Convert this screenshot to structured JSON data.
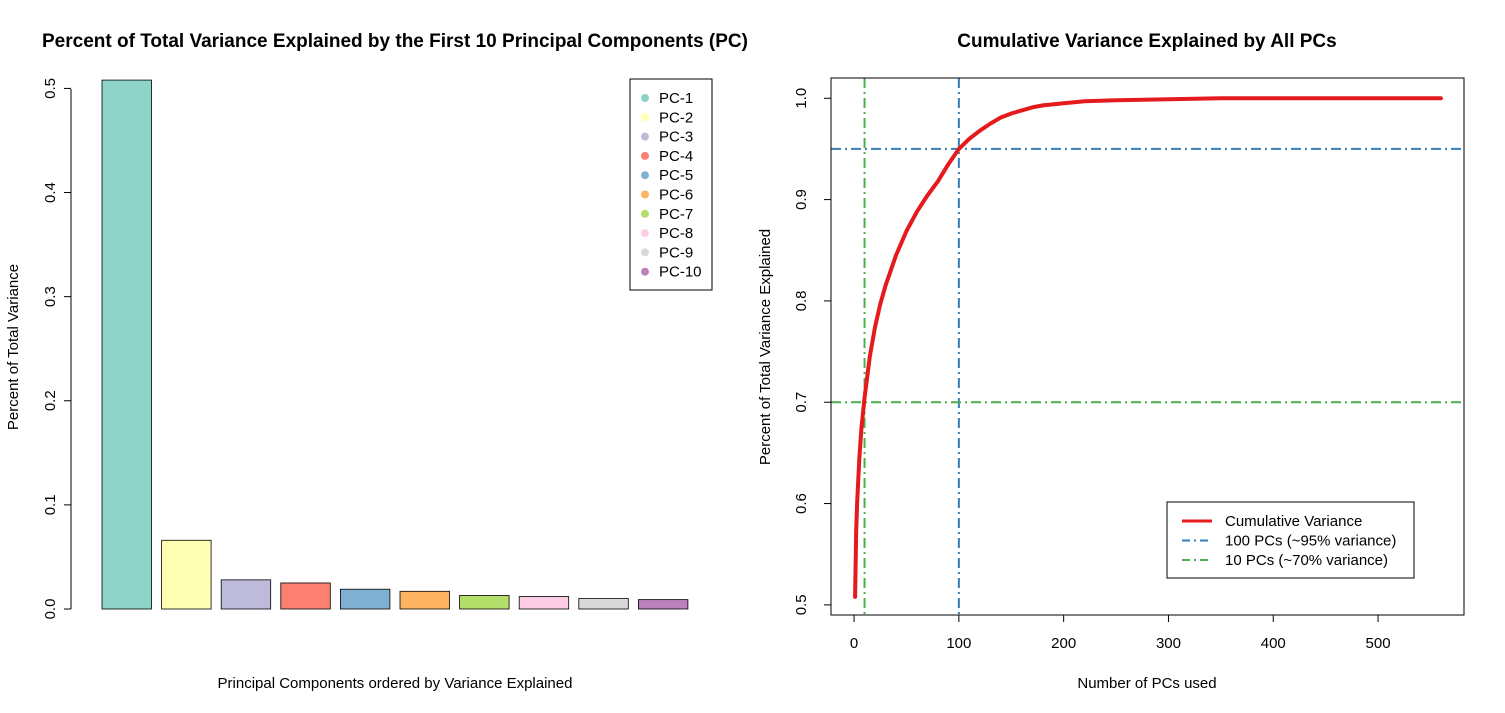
{
  "chart_data": [
    {
      "type": "bar",
      "title": "Percent of Total Variance Explained by the First 10 Principal Components (PC)",
      "xlabel": "Principal Components ordered by Variance Explained",
      "ylabel": "Percent of Total Variance",
      "ylim": [
        0,
        0.51
      ],
      "yticks": [
        0.0,
        0.1,
        0.2,
        0.3,
        0.4,
        0.5
      ],
      "ytick_labels": [
        "0.0",
        "0.1",
        "0.2",
        "0.3",
        "0.4",
        "0.5"
      ],
      "categories": [
        "PC-1",
        "PC-2",
        "PC-3",
        "PC-4",
        "PC-5",
        "PC-6",
        "PC-7",
        "PC-8",
        "PC-9",
        "PC-10"
      ],
      "values": [
        0.508,
        0.066,
        0.028,
        0.025,
        0.019,
        0.017,
        0.013,
        0.012,
        0.01,
        0.009
      ],
      "colors": [
        "#8dd3c7",
        "#ffffb3",
        "#bebada",
        "#fb8072",
        "#80b1d3",
        "#fdb462",
        "#b3de69",
        "#fccde5",
        "#d9d9d9",
        "#bc80bd"
      ],
      "legend": {
        "position": "top-right",
        "labels": [
          "PC-1",
          "PC-2",
          "PC-3",
          "PC-4",
          "PC-5",
          "PC-6",
          "PC-7",
          "PC-8",
          "PC-9",
          "PC-10"
        ]
      }
    },
    {
      "type": "line",
      "title": "Cumulative Variance Explained by All PCs",
      "xlabel": "Number of PCs used",
      "ylabel": "Percent of Total Variance Explained",
      "xlim": [
        -22,
        582
      ],
      "ylim": [
        0.49,
        1.02
      ],
      "xticks": [
        0,
        100,
        200,
        300,
        400,
        500
      ],
      "xtick_labels": [
        "0",
        "100",
        "200",
        "300",
        "400",
        "500"
      ],
      "yticks": [
        0.5,
        0.6,
        0.7,
        0.8,
        0.9,
        1.0
      ],
      "ytick_labels": [
        "0.5",
        "0.6",
        "0.7",
        "0.8",
        "0.9",
        "1.0"
      ],
      "series": [
        {
          "name": "Cumulative Variance",
          "color": "#e41a1c",
          "x": [
            1,
            2,
            3,
            5,
            7,
            10,
            15,
            20,
            25,
            30,
            40,
            50,
            60,
            70,
            80,
            90,
            100,
            110,
            120,
            130,
            140,
            150,
            160,
            170,
            180,
            200,
            220,
            250,
            300,
            350,
            400,
            450,
            500,
            560
          ],
          "y": [
            0.508,
            0.574,
            0.602,
            0.644,
            0.674,
            0.704,
            0.745,
            0.774,
            0.797,
            0.815,
            0.845,
            0.869,
            0.888,
            0.904,
            0.918,
            0.935,
            0.95,
            0.96,
            0.968,
            0.975,
            0.981,
            0.985,
            0.988,
            0.991,
            0.993,
            0.995,
            0.997,
            0.998,
            0.999,
            1.0,
            1.0,
            1.0,
            1.0,
            1.0
          ]
        }
      ],
      "reference_lines": [
        {
          "orientation": "horizontal",
          "value": 0.95,
          "color": "#377eb8",
          "style": "dot-dash"
        },
        {
          "orientation": "vertical",
          "value": 100,
          "color": "#377eb8",
          "style": "dot-dash"
        },
        {
          "orientation": "horizontal",
          "value": 0.7,
          "color": "#4daf4a",
          "style": "dot-dash"
        },
        {
          "orientation": "vertical",
          "value": 10,
          "color": "#4daf4a",
          "style": "dot-dash"
        }
      ],
      "legend": {
        "position": "bottom-right",
        "entries": [
          {
            "label": "Cumulative Variance",
            "color": "#e41a1c",
            "style": "solid"
          },
          {
            "label": "100 PCs (~95% variance)",
            "color": "#377eb8",
            "style": "dot-dash"
          },
          {
            "label": "10 PCs (~70% variance)",
            "color": "#4daf4a",
            "style": "dot-dash"
          }
        ]
      }
    }
  ]
}
